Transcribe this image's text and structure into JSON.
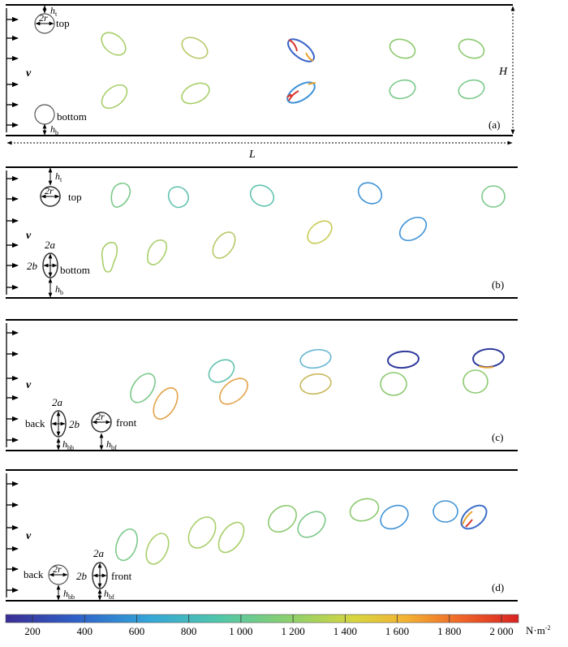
{
  "panels": {
    "a": {
      "tag": "(a)",
      "velocity_symbol": "v",
      "top_label": "top",
      "bottom_label": "bottom",
      "radius_label": "2r",
      "h_top": "h",
      "h_top_sub": "t",
      "h_bottom": "h",
      "h_bottom_sub": "b",
      "height_label": "H",
      "length_label": "L"
    },
    "b": {
      "tag": "(b)",
      "velocity_symbol": "v",
      "top_label": "top",
      "bottom_label": "bottom",
      "radius_label": "2r",
      "major_axis_label": "2a",
      "minor_axis_label": "2b",
      "h_top": "h",
      "h_top_sub": "t",
      "h_bottom": "h",
      "h_bottom_sub": "b"
    },
    "c": {
      "tag": "(c)",
      "velocity_symbol": "v",
      "back_label": "back",
      "front_label": "front",
      "radius_label": "2r",
      "major_axis_label": "2a",
      "minor_axis_label": "2b",
      "h_back": "h",
      "h_back_sub": "bb",
      "h_front": "h",
      "h_front_sub": "bf"
    },
    "d": {
      "tag": "(d)",
      "velocity_symbol": "v",
      "back_label": "back",
      "front_label": "front",
      "radius_label": "2r",
      "major_axis_label": "2a",
      "minor_axis_label": "2b",
      "h_back": "h",
      "h_back_sub": "bb",
      "h_front": "h",
      "h_front_sub": "bf"
    }
  },
  "colorbar": {
    "ticks": [
      "200",
      "400",
      "600",
      "800",
      "1 000",
      "1 200",
      "1 400",
      "1 600",
      "1 800",
      "2 000"
    ],
    "unit": "N·m",
    "unit_exp": "-2",
    "colors": [
      "#3a2d94",
      "#2f62c8",
      "#34a6d8",
      "#52c7a8",
      "#8fd06a",
      "#d8d640",
      "#f3b232",
      "#ef6428",
      "#d92222"
    ]
  },
  "cell_colors": {
    "green": "#7cc98a",
    "yellowgreen": "#a8cf6a",
    "olive": "#b8c868",
    "teal": "#63c3b0",
    "blue": "#3f92d6",
    "orange": "#e3a247",
    "lightblue": "#6ab8d2"
  }
}
